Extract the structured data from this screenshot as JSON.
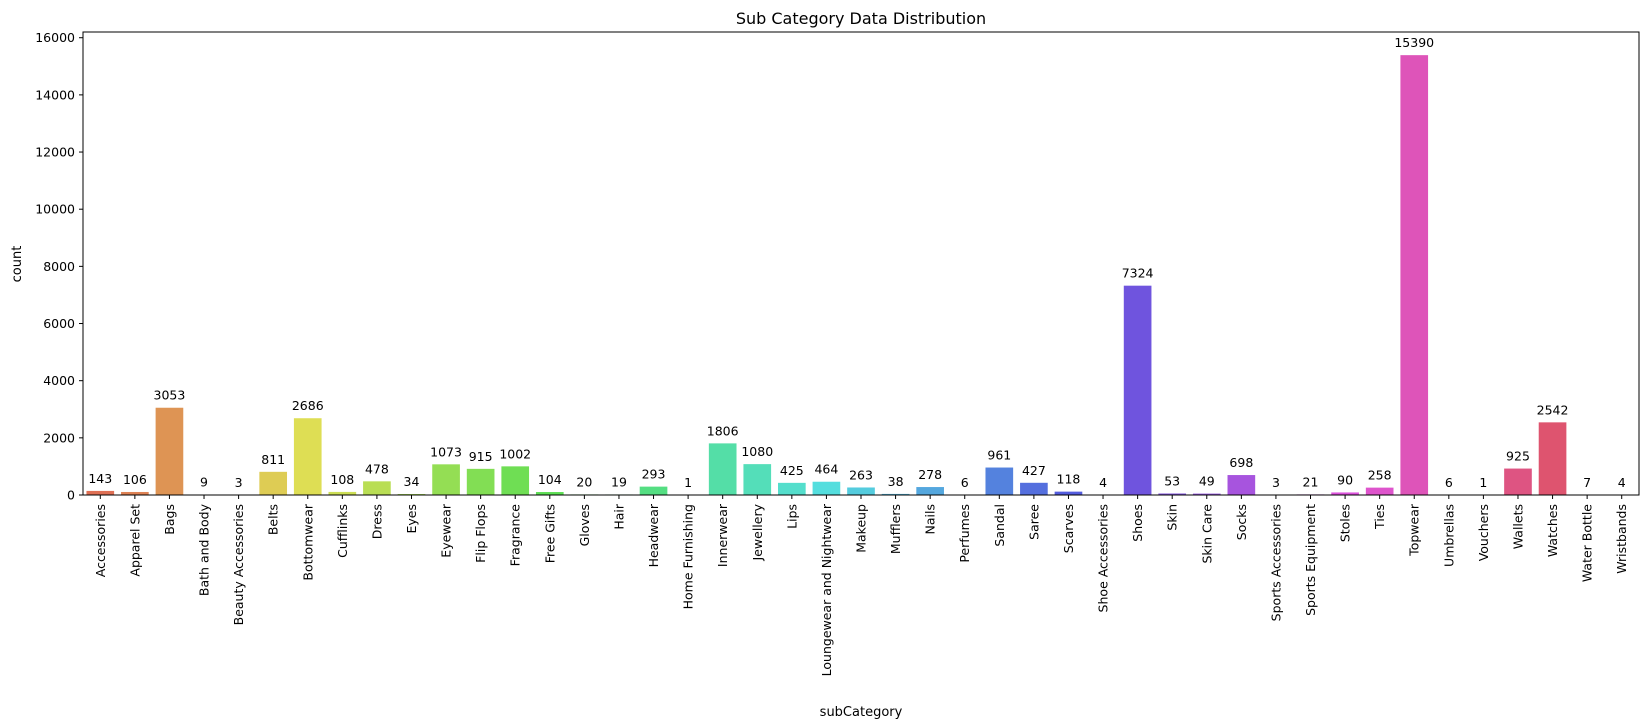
{
  "chart_data": {
    "type": "bar",
    "title": "Sub Category Data Distribution",
    "xlabel": "subCategory",
    "ylabel": "count",
    "ylim": [
      0,
      16200
    ],
    "yticks": [
      0,
      2000,
      4000,
      6000,
      8000,
      10000,
      12000,
      14000,
      16000
    ],
    "grid": false,
    "legend": "none",
    "palette": "husl",
    "categories": [
      "Accessories",
      "Apparel Set",
      "Bags",
      "Bath and Body",
      "Beauty Accessories",
      "Belts",
      "Bottomwear",
      "Cufflinks",
      "Dress",
      "Eyes",
      "Eyewear",
      "Flip Flops",
      "Fragrance",
      "Free Gifts",
      "Gloves",
      "Hair",
      "Headwear",
      "Home Furnishing",
      "Innerwear",
      "Jewellery",
      "Lips",
      "Loungewear and Nightwear",
      "Makeup",
      "Mufflers",
      "Nails",
      "Perfumes",
      "Sandal",
      "Saree",
      "Scarves",
      "Shoe Accessories",
      "Shoes",
      "Skin",
      "Skin Care",
      "Socks",
      "Sports Accessories",
      "Sports Equipment",
      "Stoles",
      "Ties",
      "Topwear",
      "Umbrellas",
      "Vouchers",
      "Wallets",
      "Watches",
      "Water Bottle",
      "Wristbands"
    ],
    "values": [
      143,
      106,
      3053,
      9,
      3,
      811,
      2686,
      108,
      478,
      34,
      1073,
      915,
      1002,
      104,
      20,
      19,
      293,
      1,
      1806,
      1080,
      425,
      464,
      263,
      38,
      278,
      6,
      961,
      427,
      118,
      4,
      7324,
      53,
      49,
      698,
      3,
      21,
      90,
      258,
      15390,
      6,
      1,
      925,
      2542,
      7,
      4
    ]
  }
}
